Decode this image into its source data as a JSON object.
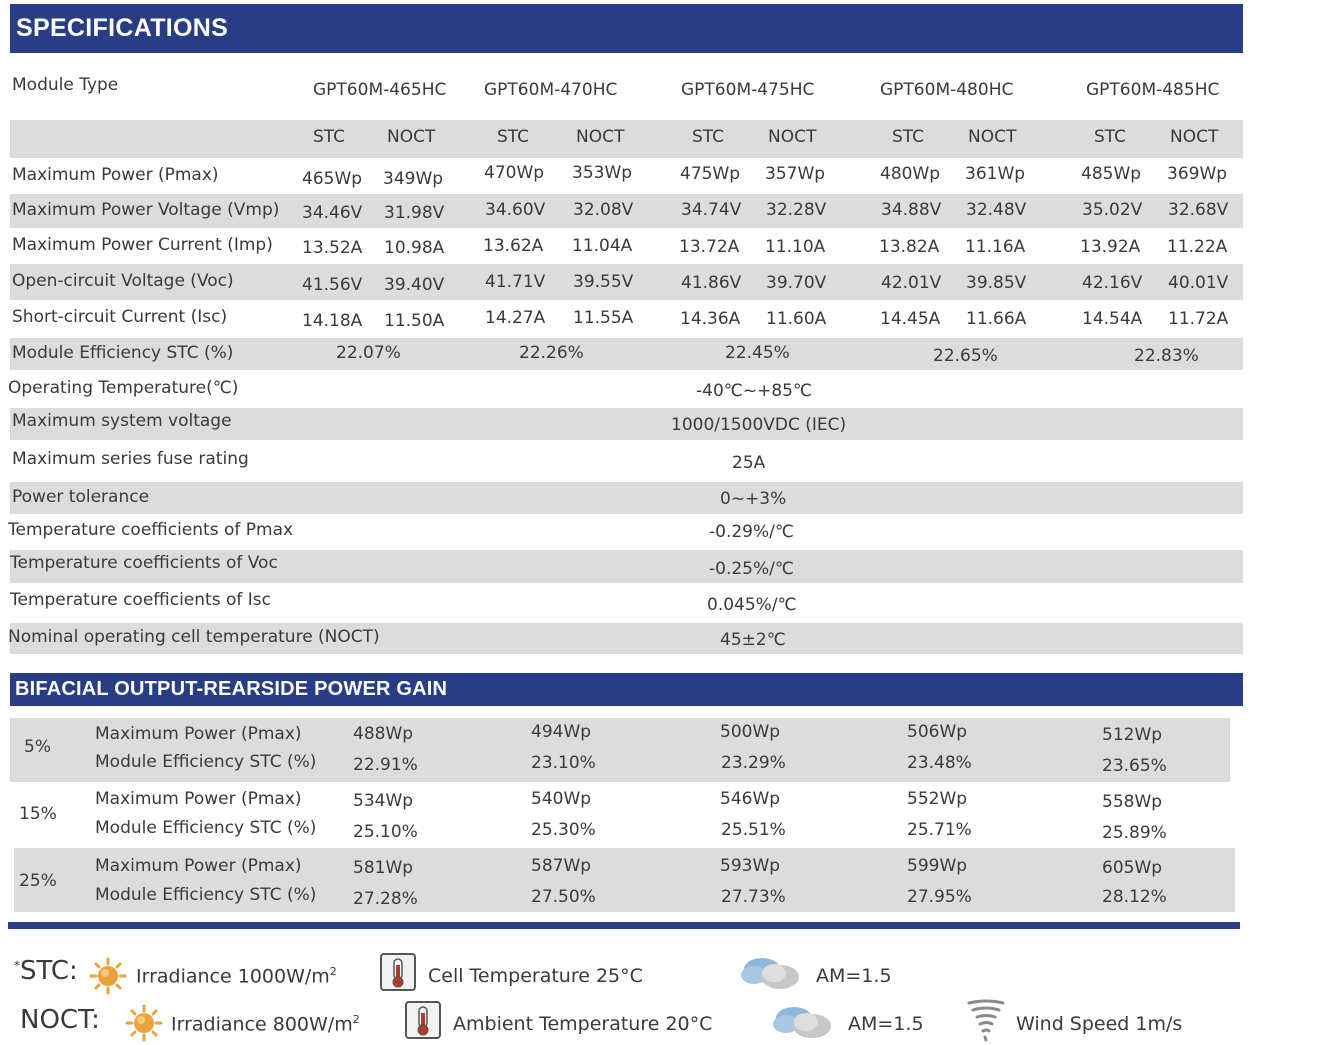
{
  "spec": {
    "title": "SPECIFICATIONS",
    "module_type_label": "Module Type",
    "models": [
      "GPT60M-465HC",
      "GPT60M-470HC",
      "GPT60M-475HC",
      "GPT60M-480HC",
      "GPT60M-485HC"
    ],
    "stc": "STC",
    "noct": "NOCT",
    "rows": [
      {
        "label": "Maximum Power (Pmax)",
        "values": [
          "465Wp",
          "349Wp",
          "470Wp",
          "353Wp",
          "475Wp",
          "357Wp",
          "480Wp",
          "361Wp",
          "485Wp",
          "369Wp"
        ]
      },
      {
        "label": "Maximum Power Voltage (Vmp)",
        "values": [
          "34.46V",
          "31.98V",
          "34.60V",
          "32.08V",
          "34.74V",
          "32.28V",
          "34.88V",
          "32.48V",
          "35.02V",
          "32.68V"
        ]
      },
      {
        "label": "Maximum Power Current (Imp)",
        "values": [
          "13.52A",
          "10.98A",
          "13.62A",
          "11.04A",
          "13.72A",
          "11.10A",
          "13.82A",
          "11.16A",
          "13.92A",
          "11.22A"
        ]
      },
      {
        "label": "Open-circuit Voltage (Voc)",
        "values": [
          "41.56V",
          "39.40V",
          "41.71V",
          "39.55V",
          "41.86V",
          "39.70V",
          "42.01V",
          "39.85V",
          "42.16V",
          "40.01V"
        ]
      },
      {
        "label": "Short-circuit Current (Isc)",
        "values": [
          "14.18A",
          "11.50A",
          "14.27A",
          "11.55A",
          "14.36A",
          "11.60A",
          "14.45A",
          "11.66A",
          "14.54A",
          "11.72A"
        ]
      }
    ],
    "efficiency": {
      "label": "Module Efficiency STC (%)",
      "values": [
        "22.07%",
        "22.26%",
        "22.45%",
        "22.65%",
        "22.83%"
      ]
    },
    "common": [
      {
        "label": "Operating Temperature(℃)",
        "value": "-40℃~+85℃"
      },
      {
        "label": "Maximum system voltage",
        "value": "1000/1500VDC (IEC)"
      },
      {
        "label": "Maximum series fuse rating",
        "value": "25A"
      },
      {
        "label": "Power tolerance",
        "value": "0~+3%"
      },
      {
        "label": "Temperature coefficients of Pmax",
        "value": "-0.29%/℃"
      },
      {
        "label": "Temperature coefficients of Voc",
        "value": "-0.25%/℃"
      },
      {
        "label": "Temperature coefficients of Isc",
        "value": "0.045%/℃"
      },
      {
        "label": "Nominal operating cell temperature  (NOCT)",
        "value": "45±2℃"
      }
    ]
  },
  "bifacial": {
    "title": "BIFACIAL OUTPUT-REARSIDE POWER GAIN",
    "power_label": "Maximum Power (Pmax)",
    "eff_label": "Module Efficiency STC (%)",
    "groups": [
      {
        "gain": "5%",
        "power": [
          "488Wp",
          "494Wp",
          "500Wp",
          "506Wp",
          "512Wp"
        ],
        "eff": [
          "22.91%",
          "23.10%",
          "23.29%",
          "23.48%",
          "23.65%"
        ]
      },
      {
        "gain": "15%",
        "power": [
          "534Wp",
          "540Wp",
          "546Wp",
          "552Wp",
          "558Wp"
        ],
        "eff": [
          "25.10%",
          "25.30%",
          "25.51%",
          "25.71%",
          "25.89%"
        ]
      },
      {
        "gain": "25%",
        "power": [
          "581Wp",
          "587Wp",
          "593Wp",
          "599Wp",
          "605Wp"
        ],
        "eff": [
          "27.28%",
          "27.50%",
          "27.73%",
          "27.95%",
          "28.12%"
        ]
      }
    ]
  },
  "legend": {
    "stc_prefix": "*",
    "stc_label": "STC:",
    "stc_irradiance": "Irradiance 1000W/m",
    "stc_cell_temp": "Cell Temperature 25°C",
    "stc_am": "AM=1.5",
    "noct_label": "NOCT:",
    "noct_irradiance": "Irradiance 800W/m",
    "noct_ambient": "Ambient Temperature 20°C",
    "noct_am": "AM=1.5",
    "noct_wind": "Wind Speed 1m/s",
    "sup2": "2",
    "icons": [
      "sun-icon",
      "thermometer-icon",
      "cloud-icon",
      "tornado-icon"
    ]
  },
  "colors": {
    "header": "#283d85",
    "shade": "#dcdcdc",
    "text": "#3a3a3a",
    "sun": "#e8a33c",
    "thermo": "#b33a2e"
  }
}
